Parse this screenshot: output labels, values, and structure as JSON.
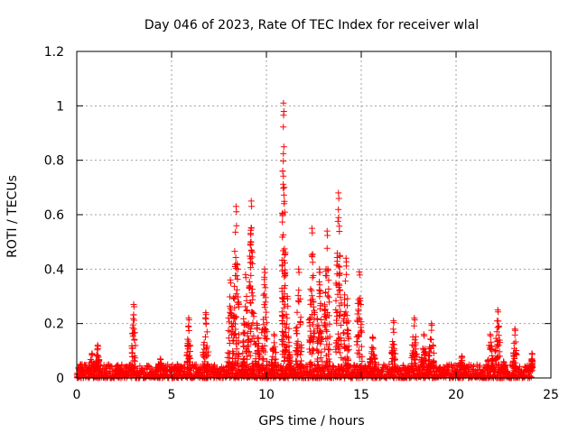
{
  "chart_data": {
    "type": "scatter",
    "title": "Day 046 of 2023, Rate Of TEC Index for receiver wlal",
    "xlabel": "GPS time / hours",
    "ylabel": "ROTI / TECUs",
    "xlim": [
      0,
      25
    ],
    "ylim": [
      0,
      1.2
    ],
    "x_ticks": [
      0,
      5,
      10,
      15,
      20,
      25
    ],
    "y_ticks": [
      0,
      0.2,
      0.4,
      0.6,
      0.8,
      1,
      1.2
    ],
    "grid": true,
    "marker": "+",
    "colors": {
      "series": "#ff0000",
      "axes": "#000000",
      "grid": "#a0a0a0"
    },
    "baseline": {
      "x_range": [
        0,
        24
      ],
      "y_range": [
        0.0,
        0.05
      ]
    },
    "spikes": [
      {
        "x": 0.2,
        "width": 0.2,
        "peak": 0.05
      },
      {
        "x": 0.8,
        "width": 0.4,
        "peak": 0.09
      },
      {
        "x": 1.1,
        "width": 0.2,
        "peak": 0.12
      },
      {
        "x": 2.2,
        "width": 0.4,
        "peak": 0.04
      },
      {
        "x": 3.0,
        "width": 0.2,
        "peak": 0.27
      },
      {
        "x": 4.4,
        "width": 0.4,
        "peak": 0.07
      },
      {
        "x": 5.3,
        "width": 0.4,
        "peak": 0.05
      },
      {
        "x": 5.9,
        "width": 0.2,
        "peak": 0.22
      },
      {
        "x": 6.8,
        "width": 0.3,
        "peak": 0.24
      },
      {
        "x": 8.1,
        "width": 0.3,
        "peak": 0.36
      },
      {
        "x": 8.4,
        "width": 0.3,
        "peak": 0.63
      },
      {
        "x": 8.9,
        "width": 0.3,
        "peak": 0.38
      },
      {
        "x": 9.2,
        "width": 0.3,
        "peak": 0.65
      },
      {
        "x": 9.5,
        "width": 0.3,
        "peak": 0.2
      },
      {
        "x": 9.9,
        "width": 0.3,
        "peak": 0.4
      },
      {
        "x": 10.4,
        "width": 0.3,
        "peak": 0.16
      },
      {
        "x": 10.9,
        "width": 0.2,
        "peak": 1.01
      },
      {
        "x": 11.1,
        "width": 0.3,
        "peak": 0.3
      },
      {
        "x": 11.7,
        "width": 0.3,
        "peak": 0.4
      },
      {
        "x": 12.4,
        "width": 0.3,
        "peak": 0.55
      },
      {
        "x": 12.8,
        "width": 0.3,
        "peak": 0.4
      },
      {
        "x": 13.2,
        "width": 0.3,
        "peak": 0.54
      },
      {
        "x": 13.8,
        "width": 0.3,
        "peak": 0.68
      },
      {
        "x": 14.2,
        "width": 0.3,
        "peak": 0.44
      },
      {
        "x": 14.9,
        "width": 0.3,
        "peak": 0.39
      },
      {
        "x": 15.6,
        "width": 0.3,
        "peak": 0.15
      },
      {
        "x": 16.7,
        "width": 0.2,
        "peak": 0.21
      },
      {
        "x": 17.8,
        "width": 0.3,
        "peak": 0.22
      },
      {
        "x": 18.3,
        "width": 0.3,
        "peak": 0.16
      },
      {
        "x": 18.7,
        "width": 0.3,
        "peak": 0.2
      },
      {
        "x": 20.3,
        "width": 0.3,
        "peak": 0.08
      },
      {
        "x": 21.8,
        "width": 0.3,
        "peak": 0.16
      },
      {
        "x": 22.2,
        "width": 0.3,
        "peak": 0.25
      },
      {
        "x": 22.5,
        "width": 0.2,
        "peak": 0.06
      },
      {
        "x": 23.1,
        "width": 0.2,
        "peak": 0.18
      },
      {
        "x": 24.0,
        "width": 0.1,
        "peak": 0.09
      }
    ]
  }
}
